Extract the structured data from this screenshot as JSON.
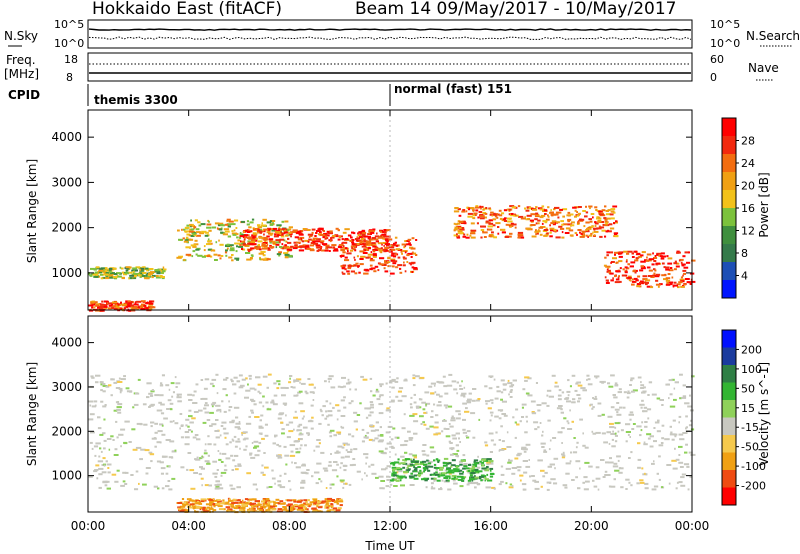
{
  "header": {
    "title": "Hokkaido East (fitACF)",
    "beam_info": "Beam 14 09/May/2017 - 10/May/2017"
  },
  "top_panels": {
    "noise": {
      "left_label": "N.Sky",
      "right_label": "N.Search",
      "left_ticks": [
        "10^5",
        "10^0"
      ],
      "right_ticks": [
        "10^5",
        "10^0"
      ]
    },
    "freq": {
      "left_label_1": "Freq.",
      "left_label_2": "[MHz]",
      "left_ticks": [
        "18",
        "8"
      ],
      "right_ticks": [
        "60",
        "0"
      ],
      "right_label": "Nave"
    },
    "cpid": {
      "label": "CPID",
      "segments": [
        "themis 3300",
        "normal (fast) 151"
      ]
    }
  },
  "power_panel": {
    "ylabel": "Slant Range [km]",
    "yticks": [
      "1000",
      "2000",
      "3000",
      "4000"
    ],
    "colorbar_label": "Power [dB]",
    "colorbar_ticks": [
      "4",
      "8",
      "12",
      "16",
      "20",
      "24",
      "28"
    ]
  },
  "velocity_panel": {
    "ylabel": "Slant Range [km]",
    "yticks": [
      "1000",
      "2000",
      "3000",
      "4000"
    ],
    "colorbar_label": "Velocity [m s^-1]",
    "colorbar_ticks": [
      "-200",
      "-100",
      "-50",
      "-15",
      "15",
      "50",
      "100",
      "200"
    ]
  },
  "xaxis": {
    "ticks": [
      "00:00",
      "04:00",
      "08:00",
      "12:00",
      "16:00",
      "20:00",
      "00:00"
    ],
    "label": "Time UT"
  },
  "colors": {
    "power_scale": [
      "#0015ff",
      "#1d4fb5",
      "#347a4a",
      "#3f8f3e",
      "#7cc23c",
      "#f2c21a",
      "#f0a013",
      "#f36d10",
      "#f2290e",
      "#ff0000"
    ],
    "velocity_scale": [
      "#ff0000",
      "#ef4b12",
      "#f0a013",
      "#f5c94d",
      "#c8c8c0",
      "#8fd15a",
      "#33b533",
      "#2f7f45",
      "#1b3b9e",
      "#0010ff"
    ],
    "ground_scatter": "#c8c8c0"
  },
  "chart_data": [
    {
      "type": "heatmap",
      "title": "Power",
      "xlabel": "Time UT",
      "ylabel": "Slant Range [km]",
      "xlim": [
        "00:00",
        "24:00"
      ],
      "ylim": [
        180,
        4600
      ],
      "colorbar": {
        "label": "Power [dB]",
        "range": [
          0,
          30
        ]
      },
      "features": [
        {
          "time_range": [
            "00:00",
            "03:00"
          ],
          "range_km": [
            900,
            1150
          ],
          "power_db": 14
        },
        {
          "time_range": [
            "00:00",
            "02:30"
          ],
          "range_km": [
            180,
            400
          ],
          "power_db": 26
        },
        {
          "time_range": [
            "03:30",
            "08:00"
          ],
          "range_km": [
            1300,
            2200
          ],
          "power_db": 18
        },
        {
          "time_range": [
            "06:00",
            "12:00"
          ],
          "range_km": [
            1500,
            2000
          ],
          "power_db": 26
        },
        {
          "time_range": [
            "10:00",
            "13:00"
          ],
          "range_km": [
            1000,
            1800
          ],
          "power_db": 28
        },
        {
          "time_range": [
            "14:30",
            "21:00"
          ],
          "range_km": [
            1800,
            2500
          ],
          "power_db": 24
        },
        {
          "time_range": [
            "20:30",
            "24:00"
          ],
          "range_km": [
            700,
            1500
          ],
          "power_db": 26
        }
      ]
    },
    {
      "type": "heatmap",
      "title": "Velocity",
      "xlabel": "Time UT",
      "ylabel": "Slant Range [km]",
      "xlim": [
        "00:00",
        "24:00"
      ],
      "ylim": [
        180,
        4600
      ],
      "colorbar": {
        "label": "Velocity [m s^-1]",
        "range": [
          -200,
          200
        ]
      },
      "features": [
        {
          "time_range": [
            "00:00",
            "24:00"
          ],
          "range_km": [
            700,
            3300
          ],
          "velocity": 0,
          "note": "ground scatter (grey)"
        },
        {
          "time_range": [
            "12:00",
            "16:00"
          ],
          "range_km": [
            900,
            1400
          ],
          "velocity": 40
        },
        {
          "time_range": [
            "03:30",
            "10:00"
          ],
          "range_km": [
            200,
            500
          ],
          "velocity": -40
        }
      ]
    }
  ]
}
